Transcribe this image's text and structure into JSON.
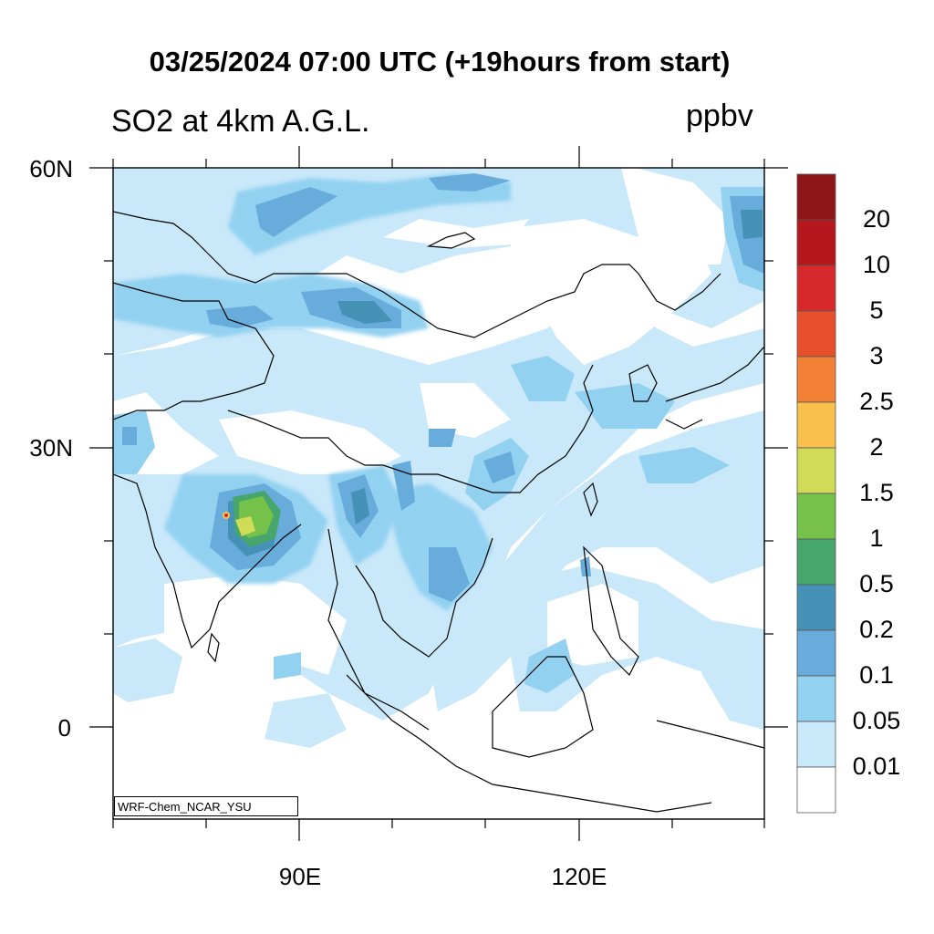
{
  "map": {
    "title": "03/25/2024 07:00 UTC (+19hours from start)",
    "variable": "SO2 at 4km A.G.L.",
    "units": "ppbv",
    "credit": "WRF-Chem_NCAR_YSU",
    "lat_labels": [
      "60N",
      "30N",
      "0"
    ],
    "lon_labels": [
      "90E",
      "120E"
    ]
  },
  "colorbar": {
    "levels": [
      "20",
      "10",
      "5",
      "3",
      "2.5",
      "2",
      "1.5",
      "1",
      "0.5",
      "0.2",
      "0.1",
      "0.05",
      "0.01"
    ],
    "colors": [
      "#8e1518",
      "#b4181d",
      "#d7282b",
      "#e8502b",
      "#f28136",
      "#f9c04e",
      "#d0dc58",
      "#76c14a",
      "#47a66c",
      "#4592b6",
      "#68acdb",
      "#93d1f1",
      "#c9e8f9",
      "#ffffff"
    ]
  }
}
